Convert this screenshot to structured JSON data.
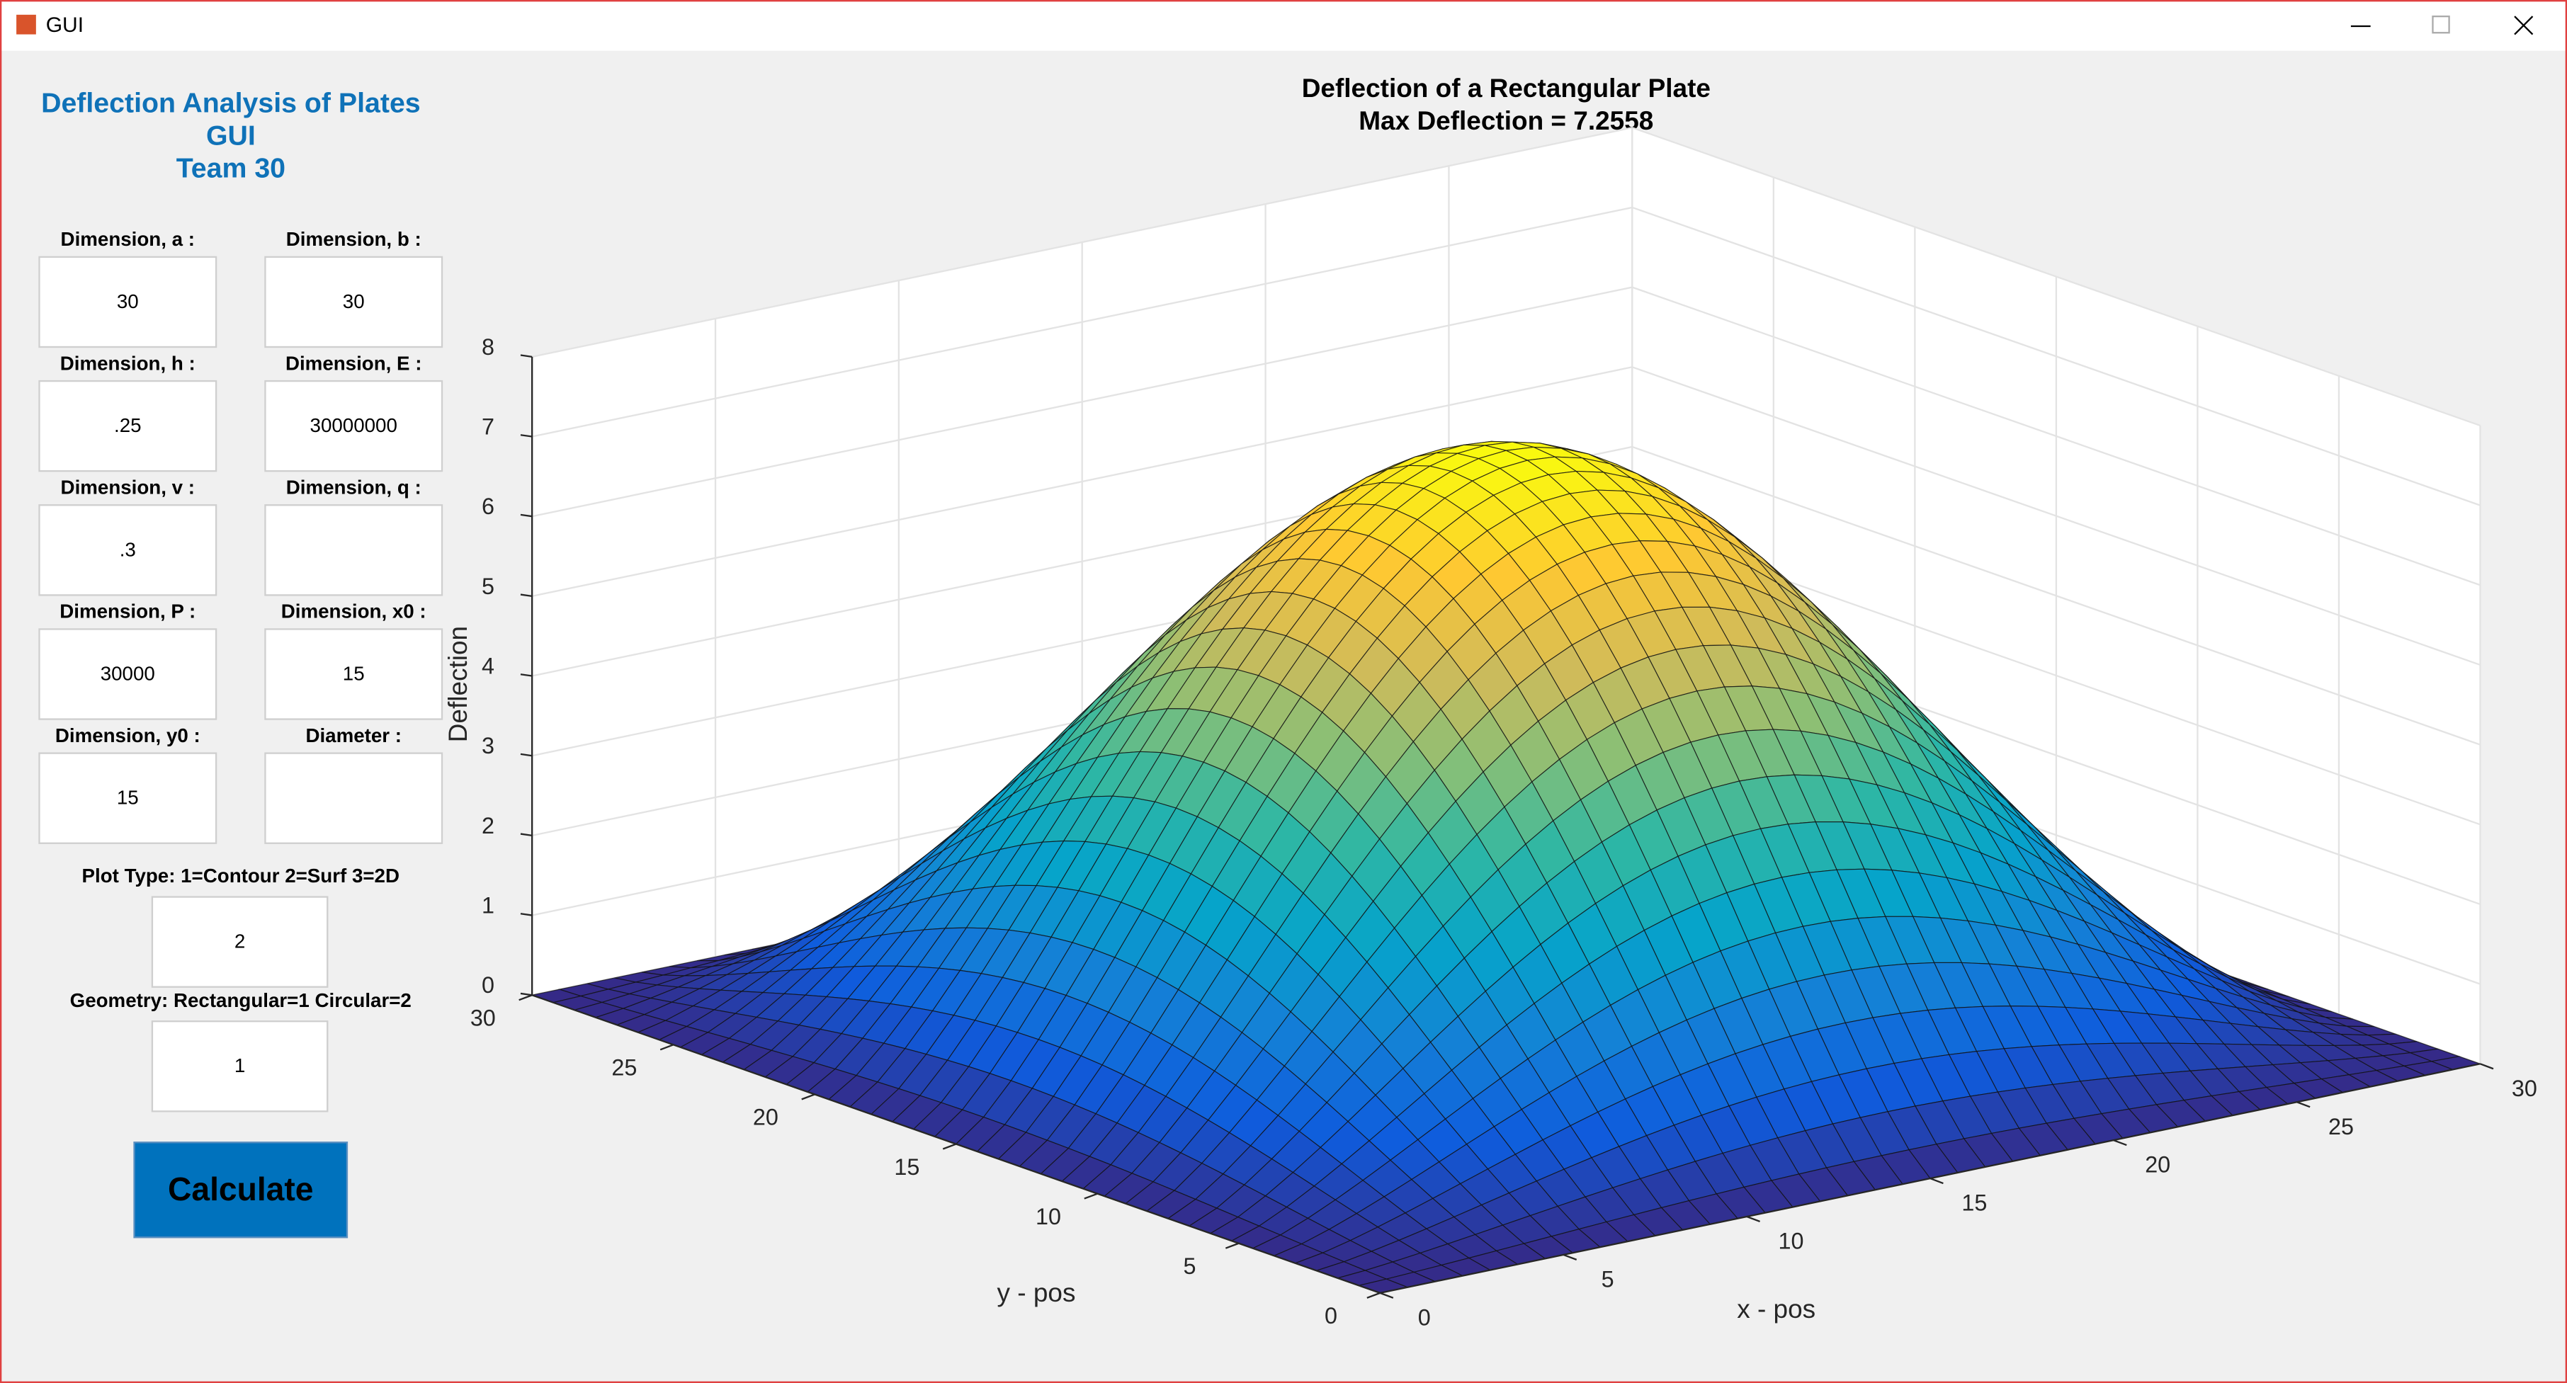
{
  "window": {
    "title": "GUI"
  },
  "panel": {
    "title": [
      "Deflection Analysis of Plates",
      "GUI",
      "Team 30"
    ],
    "fields": [
      {
        "label": "Dimension, a :",
        "value": "30"
      },
      {
        "label": "Dimension, b :",
        "value": "30"
      },
      {
        "label": "Dimension, h :",
        "value": ".25"
      },
      {
        "label": "Dimension, E :",
        "value": "30000000"
      },
      {
        "label": "Dimension, v :",
        "value": ".3"
      },
      {
        "label": "Dimension, q :"
      },
      {
        "label": "Dimension, P :",
        "value": "30000"
      },
      {
        "label": "Dimension, x0 :",
        "value": "15"
      },
      {
        "label": "Dimension, y0 :",
        "value": "15"
      },
      {
        "label": "Diameter :"
      }
    ],
    "plot_type": {
      "label": "Plot Type: 1=Contour  2=Surf  3=2D",
      "value": "2"
    },
    "geometry": {
      "label": "Geometry: Rectangular=1 Circular=2",
      "value": "1"
    },
    "button": "Calculate"
  },
  "chart_data": {
    "type": "surface",
    "title": "Deflection of a Rectangular Plate",
    "subtitle": {
      "value": 7.2558,
      "label": "Max Deflection = 7.2558"
    },
    "xlabel": "x - pos",
    "ylabel": "y - pos",
    "zlabel": "Deflection",
    "xlim": [
      0,
      30
    ],
    "ylim": [
      0,
      30
    ],
    "zlim": [
      0,
      8
    ],
    "xticks": [
      0,
      5,
      10,
      15,
      20,
      25,
      30
    ],
    "yticks": [
      0,
      5,
      10,
      15,
      20,
      25,
      30
    ],
    "zticks": [
      0,
      1,
      2,
      3,
      4,
      5,
      6,
      7,
      8
    ],
    "grid": true,
    "colormap": "parula"
  }
}
